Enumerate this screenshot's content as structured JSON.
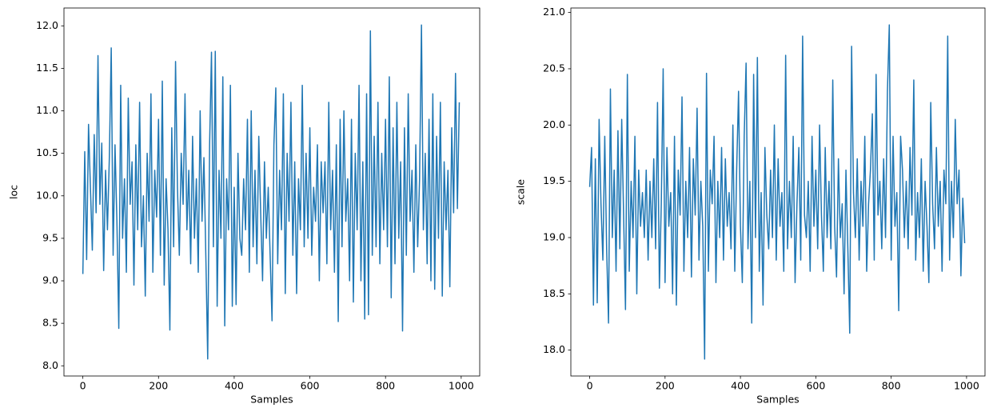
{
  "chart_data": [
    {
      "type": "line",
      "xlabel": "Samples",
      "ylabel": "loc",
      "color": "#1f77b4",
      "x": [
        0,
        5,
        10,
        15,
        20,
        25,
        30,
        35,
        40,
        45,
        50,
        55,
        60,
        65,
        70,
        75,
        80,
        85,
        90,
        95,
        100,
        105,
        110,
        115,
        120,
        125,
        130,
        135,
        140,
        145,
        150,
        155,
        160,
        165,
        170,
        175,
        180,
        185,
        190,
        195,
        200,
        205,
        210,
        215,
        220,
        225,
        230,
        235,
        240,
        245,
        250,
        255,
        260,
        265,
        270,
        275,
        280,
        285,
        290,
        295,
        300,
        305,
        310,
        315,
        320,
        325,
        330,
        335,
        340,
        345,
        350,
        355,
        360,
        365,
        370,
        375,
        380,
        385,
        390,
        395,
        400,
        405,
        410,
        415,
        420,
        425,
        430,
        435,
        440,
        445,
        450,
        455,
        460,
        465,
        470,
        475,
        480,
        485,
        490,
        495,
        500,
        505,
        510,
        515,
        520,
        525,
        530,
        535,
        540,
        545,
        550,
        555,
        560,
        565,
        570,
        575,
        580,
        585,
        590,
        595,
        600,
        605,
        610,
        615,
        620,
        625,
        630,
        635,
        640,
        645,
        650,
        655,
        660,
        665,
        670,
        675,
        680,
        685,
        690,
        695,
        700,
        705,
        710,
        715,
        720,
        725,
        730,
        735,
        740,
        745,
        750,
        755,
        760,
        765,
        770,
        775,
        780,
        785,
        790,
        795,
        800,
        805,
        810,
        815,
        820,
        825,
        830,
        835,
        840,
        845,
        850,
        855,
        860,
        865,
        870,
        875,
        880,
        885,
        890,
        895,
        900,
        905,
        910,
        915,
        920,
        925,
        930,
        935,
        940,
        945,
        950,
        955,
        960,
        965,
        970,
        975,
        980,
        985,
        990,
        995
      ],
      "values": [
        9.08,
        10.52,
        9.25,
        10.84,
        10.1,
        9.36,
        10.72,
        9.8,
        11.65,
        9.9,
        10.62,
        9.12,
        10.3,
        9.6,
        10.45,
        11.74,
        9.3,
        10.6,
        9.7,
        8.44,
        11.3,
        9.5,
        10.2,
        9.1,
        11.15,
        9.9,
        10.4,
        8.95,
        10.6,
        9.6,
        11.1,
        9.4,
        10.0,
        8.82,
        10.5,
        9.7,
        11.2,
        9.1,
        10.3,
        9.75,
        10.9,
        9.3,
        11.35,
        8.95,
        10.2,
        9.6,
        8.42,
        10.8,
        9.4,
        11.58,
        10.1,
        9.3,
        10.5,
        9.9,
        11.2,
        9.6,
        10.3,
        9.2,
        10.7,
        9.5,
        10.2,
        9.1,
        11.0,
        9.7,
        10.45,
        9.3,
        8.08,
        10.6,
        11.69,
        9.4,
        11.7,
        8.7,
        10.3,
        9.5,
        11.4,
        8.47,
        10.2,
        9.6,
        11.3,
        8.7,
        10.1,
        8.72,
        10.5,
        9.5,
        9.3,
        10.2,
        9.6,
        10.9,
        9.1,
        11.0,
        9.4,
        10.3,
        9.2,
        10.7,
        9.8,
        9.0,
        10.4,
        9.5,
        10.1,
        9.3,
        8.53,
        10.6,
        11.27,
        9.2,
        10.3,
        9.6,
        11.2,
        8.85,
        10.5,
        9.7,
        11.1,
        9.3,
        10.4,
        8.85,
        10.2,
        9.6,
        11.3,
        9.4,
        10.5,
        9.5,
        10.8,
        9.3,
        10.1,
        9.7,
        10.6,
        9.0,
        10.4,
        9.8,
        10.4,
        9.2,
        11.1,
        9.6,
        10.3,
        9.1,
        10.6,
        8.52,
        10.9,
        9.4,
        11.0,
        9.7,
        10.2,
        9.0,
        10.9,
        8.75,
        10.5,
        9.6,
        11.3,
        9.0,
        10.4,
        8.55,
        11.2,
        8.6,
        11.94,
        9.3,
        10.7,
        9.4,
        11.1,
        9.2,
        10.5,
        9.6,
        10.9,
        9.4,
        11.4,
        8.8,
        10.8,
        9.2,
        11.1,
        9.5,
        10.4,
        8.41,
        10.8,
        9.3,
        11.2,
        9.7,
        10.3,
        9.1,
        10.6,
        9.4,
        10.2,
        12.01,
        9.6,
        10.5,
        9.2,
        10.9,
        9.0,
        11.2,
        8.9,
        10.7,
        9.5,
        11.1,
        8.82,
        10.4,
        9.6,
        10.3,
        8.93,
        10.8,
        9.8,
        11.44,
        9.85,
        11.1
      ],
      "xlim": [
        -49.95,
        1048.95
      ],
      "xticks": [
        0,
        200,
        400,
        600,
        800,
        1000
      ],
      "ylim": [
        7.88,
        12.21
      ],
      "yticks": [
        {
          "value": 8,
          "label": "8.0"
        },
        {
          "value": 8.5,
          "label": "8.5"
        },
        {
          "value": 9,
          "label": "9.0"
        },
        {
          "value": 9.5,
          "label": "9.5"
        },
        {
          "value": 10,
          "label": "10.0"
        },
        {
          "value": 10.5,
          "label": "10.5"
        },
        {
          "value": 11,
          "label": "11.0"
        },
        {
          "value": 11.5,
          "label": "11.5"
        },
        {
          "value": 12,
          "label": "12.0"
        }
      ]
    },
    {
      "type": "line",
      "xlabel": "Samples",
      "ylabel": "scale",
      "color": "#1f77b4",
      "x": [
        0,
        5,
        10,
        15,
        20,
        25,
        30,
        35,
        40,
        45,
        50,
        55,
        60,
        65,
        70,
        75,
        80,
        85,
        90,
        95,
        100,
        105,
        110,
        115,
        120,
        125,
        130,
        135,
        140,
        145,
        150,
        155,
        160,
        165,
        170,
        175,
        180,
        185,
        190,
        195,
        200,
        205,
        210,
        215,
        220,
        225,
        230,
        235,
        240,
        245,
        250,
        255,
        260,
        265,
        270,
        275,
        280,
        285,
        290,
        295,
        300,
        305,
        310,
        315,
        320,
        325,
        330,
        335,
        340,
        345,
        350,
        355,
        360,
        365,
        370,
        375,
        380,
        385,
        390,
        395,
        400,
        405,
        410,
        415,
        420,
        425,
        430,
        435,
        440,
        445,
        450,
        455,
        460,
        465,
        470,
        475,
        480,
        485,
        490,
        495,
        500,
        505,
        510,
        515,
        520,
        525,
        530,
        535,
        540,
        545,
        550,
        555,
        560,
        565,
        570,
        575,
        580,
        585,
        590,
        595,
        600,
        605,
        610,
        615,
        620,
        625,
        630,
        635,
        640,
        645,
        650,
        655,
        660,
        665,
        670,
        675,
        680,
        685,
        690,
        695,
        700,
        705,
        710,
        715,
        720,
        725,
        730,
        735,
        740,
        745,
        750,
        755,
        760,
        765,
        770,
        775,
        780,
        785,
        790,
        795,
        800,
        805,
        810,
        815,
        820,
        825,
        830,
        835,
        840,
        845,
        850,
        855,
        860,
        865,
        870,
        875,
        880,
        885,
        890,
        895,
        900,
        905,
        910,
        915,
        920,
        925,
        930,
        935,
        940,
        945,
        950,
        955,
        960,
        965,
        970,
        975,
        980,
        985,
        990,
        995
      ],
      "values": [
        19.45,
        19.8,
        18.4,
        19.7,
        18.42,
        20.05,
        19.3,
        18.8,
        19.9,
        18.9,
        18.24,
        20.32,
        19.0,
        19.6,
        18.7,
        19.95,
        18.9,
        20.05,
        19.2,
        18.36,
        20.45,
        18.7,
        19.5,
        19.0,
        19.9,
        18.5,
        19.6,
        19.1,
        19.4,
        19.0,
        19.6,
        18.8,
        19.5,
        19.0,
        19.7,
        18.9,
        20.2,
        18.55,
        19.3,
        20.5,
        18.6,
        19.8,
        19.1,
        19.4,
        18.5,
        19.9,
        18.4,
        19.6,
        19.2,
        20.25,
        18.7,
        19.5,
        19.0,
        19.8,
        18.65,
        19.7,
        19.2,
        20.15,
        18.8,
        19.5,
        19.1,
        17.92,
        20.46,
        18.7,
        19.6,
        19.3,
        19.9,
        18.6,
        19.5,
        19.0,
        19.8,
        18.8,
        19.7,
        19.1,
        19.4,
        18.9,
        20.0,
        18.7,
        19.6,
        20.3,
        19.1,
        18.6,
        19.9,
        20.55,
        18.9,
        19.5,
        18.24,
        20.45,
        19.0,
        20.6,
        18.7,
        19.4,
        18.4,
        19.8,
        19.2,
        18.9,
        19.6,
        19.0,
        20.0,
        18.8,
        19.7,
        19.1,
        19.4,
        18.7,
        20.62,
        18.9,
        19.5,
        19.0,
        19.9,
        18.6,
        19.3,
        19.8,
        18.8,
        20.79,
        19.2,
        19.0,
        19.5,
        18.7,
        19.9,
        19.1,
        19.6,
        18.9,
        20.0,
        19.2,
        18.7,
        19.8,
        19.0,
        19.5,
        18.9,
        20.4,
        19.1,
        18.65,
        19.7,
        19.0,
        19.3,
        18.5,
        19.6,
        18.9,
        18.15,
        20.7,
        19.4,
        19.0,
        19.7,
        18.8,
        19.5,
        19.1,
        19.9,
        18.7,
        19.3,
        19.6,
        20.1,
        18.8,
        20.45,
        19.2,
        19.5,
        18.9,
        19.7,
        19.0,
        20.3,
        20.89,
        18.8,
        19.9,
        19.1,
        19.4,
        18.35,
        19.9,
        19.6,
        19.0,
        19.5,
        18.9,
        19.8,
        19.2,
        20.4,
        18.8,
        19.4,
        19.0,
        19.7,
        18.7,
        19.5,
        19.1,
        18.6,
        20.2,
        19.3,
        18.9,
        19.8,
        19.1,
        19.5,
        18.7,
        19.6,
        19.3,
        20.79,
        18.8,
        19.5,
        19.0,
        20.05,
        19.3,
        19.6,
        18.66,
        19.35,
        18.95
      ],
      "xlim": [
        -49.95,
        1048.95
      ],
      "xticks": [
        0,
        200,
        400,
        600,
        800,
        1000
      ],
      "ylim": [
        17.77,
        21.04
      ],
      "yticks": [
        {
          "value": 18,
          "label": "18.0"
        },
        {
          "value": 18.5,
          "label": "18.5"
        },
        {
          "value": 19,
          "label": "19.0"
        },
        {
          "value": 19.5,
          "label": "19.5"
        },
        {
          "value": 20,
          "label": "20.0"
        },
        {
          "value": 20.5,
          "label": "20.5"
        },
        {
          "value": 21,
          "label": "21.0"
        }
      ]
    }
  ]
}
